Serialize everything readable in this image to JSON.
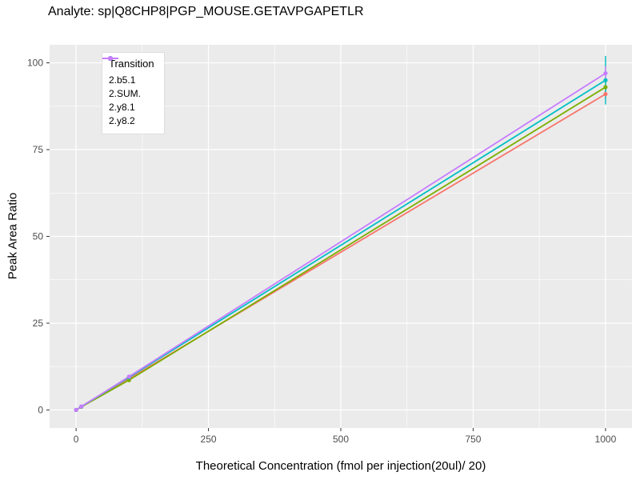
{
  "chart_data": {
    "type": "line",
    "title": "Analyte: sp|Q8CHP8|PGP_MOUSE.GETAVPGAPETLR",
    "xlabel": "Theoretical Concentration (fmol per injection(20ul)/ 20)",
    "ylabel": "Peak Area Ratio",
    "xlim": [
      0,
      1000
    ],
    "ylim": [
      0,
      100
    ],
    "x_ticks": [
      0,
      250,
      500,
      750,
      1000
    ],
    "y_ticks": [
      0,
      25,
      50,
      75,
      100
    ],
    "grid": "major and minor white gridlines on light gray panel",
    "legend_title": "Transition",
    "legend_position": "inside top-left",
    "x": [
      0,
      10,
      100,
      1000
    ],
    "series": [
      {
        "name": "2.b5.1",
        "color": "#F8766D",
        "values": [
          0,
          0.9,
          9.0,
          91
        ],
        "error_last": 1.5
      },
      {
        "name": "2.SUM.",
        "color": "#7CAE00",
        "values": [
          0,
          0.9,
          8.6,
          93
        ],
        "error_last": 2.5
      },
      {
        "name": "2.y8.1",
        "color": "#00BFC4",
        "values": [
          0,
          1.0,
          9.4,
          95
        ],
        "error_last": 7
      },
      {
        "name": "2.y8.2",
        "color": "#C77CFF",
        "values": [
          0,
          1.0,
          9.6,
          97
        ],
        "error_last": 2
      }
    ],
    "panel_bg": "#EBEBEB",
    "grid_color": "#FFFFFF",
    "tick_color": "#333333",
    "tick_label_color": "#4D4D4D"
  }
}
